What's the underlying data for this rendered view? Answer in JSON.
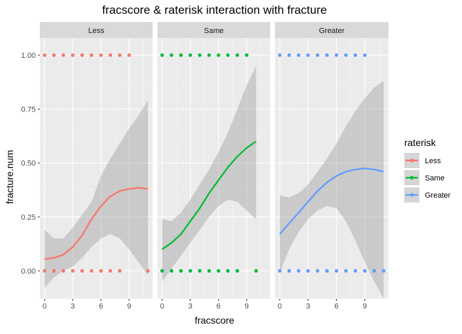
{
  "chart_data": {
    "type": "scatter",
    "title": "fracscore & raterisk  interaction with fracture",
    "xlabel": "fracscore",
    "ylabel": "fracture.num",
    "x_ticks": [
      "0",
      "3",
      "6",
      "9"
    ],
    "x_tick_values": [
      0,
      3,
      6,
      9
    ],
    "y_ticks": [
      "0.00",
      "0.25",
      "0.50",
      "0.75",
      "1.00"
    ],
    "y_tick_values": [
      0,
      0.25,
      0.5,
      0.75,
      1.0
    ],
    "xlim": [
      -0.5,
      11.5
    ],
    "ylim": [
      -0.13,
      1.08
    ],
    "grid": true,
    "legend": {
      "title": "raterisk",
      "position": "right",
      "entries": [
        {
          "name": "Less",
          "color": "#F8766D"
        },
        {
          "name": "Same",
          "color": "#00BA38"
        },
        {
          "name": "Greater",
          "color": "#619CFF"
        }
      ]
    },
    "facets": [
      {
        "label": "Less",
        "color": "#F8766D",
        "points_y1_x": [
          0,
          1,
          2,
          3,
          4,
          5,
          6,
          7,
          8,
          9
        ],
        "points_y0_x": [
          0,
          1,
          2,
          3,
          4,
          5,
          6,
          7,
          8,
          11
        ],
        "smooth": {
          "x": [
            0,
            1,
            2,
            3,
            4,
            5,
            6,
            7,
            8,
            9,
            10,
            11
          ],
          "y": [
            0.055,
            0.06,
            0.075,
            0.11,
            0.165,
            0.24,
            0.3,
            0.345,
            0.37,
            0.38,
            0.385,
            0.38
          ],
          "lower": [
            -0.08,
            -0.03,
            0.0,
            0.02,
            0.06,
            0.11,
            0.15,
            0.17,
            0.15,
            0.1,
            0.04,
            -0.02
          ],
          "upper": [
            0.19,
            0.15,
            0.15,
            0.2,
            0.26,
            0.32,
            0.44,
            0.52,
            0.59,
            0.66,
            0.72,
            0.79
          ]
        }
      },
      {
        "label": "Same",
        "color": "#00BA38",
        "points_y1_x": [
          0,
          1,
          2,
          3,
          4,
          5,
          6,
          7,
          8,
          9
        ],
        "points_y0_x": [
          0,
          1,
          2,
          3,
          4,
          5,
          6,
          7,
          8,
          10
        ],
        "smooth": {
          "x": [
            0,
            1,
            2,
            3,
            4,
            5,
            6,
            7,
            8,
            9,
            10
          ],
          "y": [
            0.1,
            0.13,
            0.17,
            0.23,
            0.29,
            0.36,
            0.42,
            0.48,
            0.53,
            0.57,
            0.6
          ],
          "lower": [
            -0.05,
            0.01,
            0.07,
            0.13,
            0.19,
            0.25,
            0.3,
            0.33,
            0.32,
            0.28,
            0.24
          ],
          "upper": [
            0.24,
            0.23,
            0.27,
            0.33,
            0.4,
            0.47,
            0.55,
            0.64,
            0.75,
            0.86,
            0.95
          ]
        }
      },
      {
        "label": "Greater",
        "color": "#619CFF",
        "points_y1_x": [
          0,
          1,
          2,
          3,
          4,
          5,
          6,
          7,
          8,
          9
        ],
        "points_y0_x": [
          0,
          1,
          2,
          3,
          4,
          5,
          6,
          7,
          8,
          9,
          10,
          11
        ],
        "smooth": {
          "x": [
            0,
            1,
            2,
            3,
            4,
            5,
            6,
            7,
            8,
            9,
            10,
            11
          ],
          "y": [
            0.17,
            0.22,
            0.27,
            0.32,
            0.37,
            0.41,
            0.44,
            0.46,
            0.47,
            0.475,
            0.47,
            0.46
          ],
          "lower": [
            -0.01,
            0.1,
            0.18,
            0.24,
            0.28,
            0.3,
            0.29,
            0.23,
            0.14,
            0.04,
            -0.05,
            -0.13
          ],
          "upper": [
            0.35,
            0.34,
            0.36,
            0.4,
            0.46,
            0.52,
            0.59,
            0.67,
            0.74,
            0.8,
            0.85,
            0.88
          ]
        }
      }
    ]
  }
}
